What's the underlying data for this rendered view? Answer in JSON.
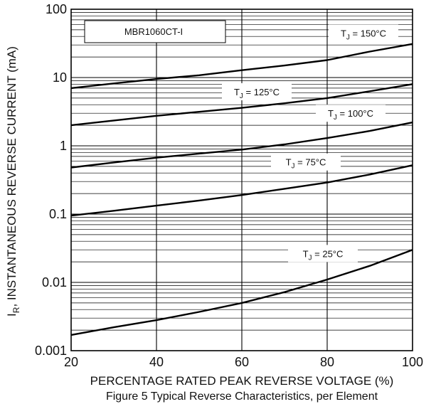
{
  "chart_data": {
    "type": "line",
    "part_number": "MBR1060CT-I",
    "xlabel": "PERCENTAGE RATED PEAK REVERSE VOLTAGE (%)",
    "ylabel": "I_R, INSTANTANEOUS REVERSE CURRENT (mA)",
    "caption": "Figure 5 Typical Reverse Characteristics, per Element",
    "xlim": [
      20,
      100
    ],
    "ylim": [
      0.001,
      100
    ],
    "yscale": "log",
    "grid": true,
    "x_ticks": [
      "20",
      "40",
      "60",
      "80",
      "100"
    ],
    "y_ticks": [
      "0.001",
      "0.01",
      "0.1",
      "1",
      "10",
      "100"
    ],
    "series": [
      {
        "name": "T_J = 150°C",
        "x": [
          20,
          30,
          40,
          50,
          60,
          70,
          80,
          90,
          100
        ],
        "y": [
          7.0,
          8.2,
          9.5,
          10.8,
          12.8,
          15.0,
          18.0,
          24.0,
          31.0
        ]
      },
      {
        "name": "T_J = 125°C",
        "x": [
          20,
          30,
          40,
          50,
          60,
          70,
          80,
          90,
          100
        ],
        "y": [
          2.0,
          2.35,
          2.75,
          3.15,
          3.6,
          4.2,
          5.0,
          6.3,
          8.0
        ]
      },
      {
        "name": "T_J = 100°C",
        "x": [
          20,
          30,
          40,
          50,
          60,
          70,
          80,
          90,
          100
        ],
        "y": [
          0.48,
          0.57,
          0.67,
          0.77,
          0.88,
          1.05,
          1.3,
          1.65,
          2.2
        ]
      },
      {
        "name": "T_J = 75°C",
        "x": [
          20,
          30,
          40,
          50,
          60,
          70,
          80,
          90,
          100
        ],
        "y": [
          0.095,
          0.112,
          0.133,
          0.158,
          0.19,
          0.235,
          0.29,
          0.38,
          0.52
        ]
      },
      {
        "name": "T_J = 25°C",
        "x": [
          20,
          30,
          40,
          50,
          60,
          70,
          80,
          90,
          100
        ],
        "y": [
          0.0017,
          0.0022,
          0.0028,
          0.0037,
          0.005,
          0.0072,
          0.011,
          0.0175,
          0.03
        ]
      }
    ],
    "label_text": {
      "t_prefix": "T",
      "j_sub": "J",
      "i_prefix": "I",
      "r_sub": "R",
      "ylabel_rest": ", INSTANTANEOUS REVERSE CURRENT (mA)",
      "series_suffix": [
        " = 150°C",
        " = 125°C",
        " = 100°C",
        " = 75°C",
        " = 25°C"
      ]
    }
  }
}
